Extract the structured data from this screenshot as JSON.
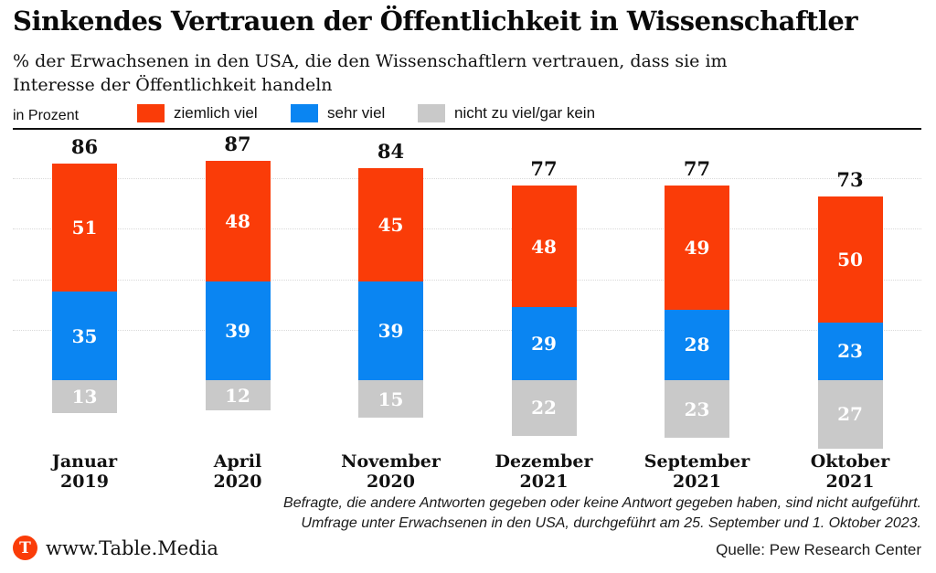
{
  "header": {
    "title": "Sinkendes Vertrauen der Öffentlichkeit in Wissenschaftler",
    "subtitle": "% der Erwachsenen in den USA, die den Wissenschaftlern vertrauen, dass sie im\nInteresse der Öffentlichkeit handeln"
  },
  "legend": {
    "unit_label": "in Prozent",
    "items": [
      {
        "label": "ziemlich viel",
        "color": "#fa3c08"
      },
      {
        "label": "sehr viel",
        "color": "#0a85f2"
      },
      {
        "label": "nicht zu viel/gar kein",
        "color": "#c9c9c9"
      }
    ]
  },
  "chart_data": {
    "type": "bar",
    "stacked": true,
    "title": "Sinkendes Vertrauen der Öffentlichkeit in Wissenschaftler",
    "ylabel": "in Prozent",
    "ylim": [
      0,
      100
    ],
    "gridlines": [
      20,
      40,
      60,
      80,
      100
    ],
    "grid": true,
    "legend_position": "top",
    "categories": [
      "Januar 2019",
      "April 2020",
      "November 2020",
      "Dezember 2021",
      "September 2021",
      "Oktober 2021"
    ],
    "series": [
      {
        "name": "ziemlich viel",
        "color": "#fa3c08",
        "position": "above-axis-top",
        "values": [
          51,
          48,
          45,
          48,
          49,
          50
        ]
      },
      {
        "name": "sehr viel",
        "color": "#0a85f2",
        "position": "above-axis-bottom",
        "values": [
          35,
          39,
          39,
          29,
          28,
          23
        ]
      },
      {
        "name": "nicht zu viel/gar kein",
        "color": "#c9c9c9",
        "position": "below-axis",
        "values": [
          13,
          12,
          15,
          22,
          23,
          27
        ]
      }
    ],
    "totals": [
      86,
      87,
      84,
      77,
      77,
      73
    ]
  },
  "footnote": {
    "line1": "Befragte, die andere Antworten gegeben oder keine Antwort gegeben haben, sind nicht aufgeführt.",
    "line2": "Umfrage unter Erwachsenen in den USA, durchgeführt am 25. September und 1. Oktober 2023."
  },
  "footer": {
    "logo_letter": "T",
    "logo_color": "#fa3c08",
    "brand": "www.Table.Media",
    "source": "Quelle: Pew Research Center"
  }
}
